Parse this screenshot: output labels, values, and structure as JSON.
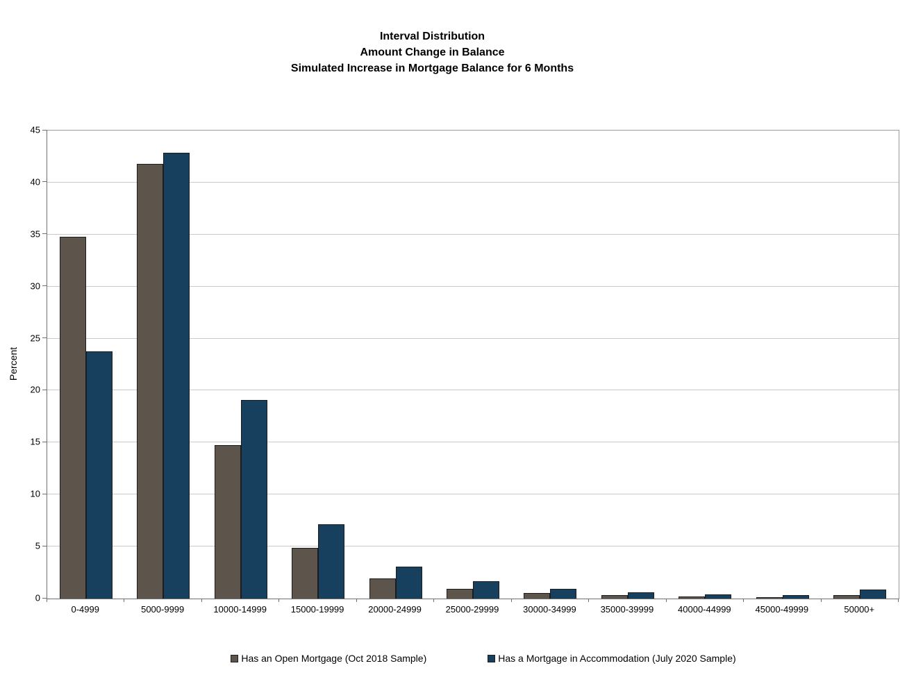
{
  "title": {
    "line1": "Interval Distribution",
    "line2": "Amount Change in Balance",
    "line3": "Simulated Increase in Mortgage Balance for 6 Months"
  },
  "chart_data": {
    "type": "bar",
    "title": "Interval Distribution — Amount Change in Balance — Simulated Increase in Mortgage Balance for 6 Months",
    "categories": [
      "0-4999",
      "5000-9999",
      "10000-14999",
      "15000-19999",
      "20000-24999",
      "25000-29999",
      "30000-34999",
      "35000-39999",
      "40000-44999",
      "45000-49999",
      "50000+"
    ],
    "series": [
      {
        "name": "Has an Open Mortgage (Oct 2018 Sample)",
        "color": "#5d544c",
        "values": [
          34.7,
          41.7,
          14.7,
          4.8,
          1.9,
          0.9,
          0.5,
          0.3,
          0.15,
          0.1,
          0.3
        ]
      },
      {
        "name": "Has a Mortgage in Accommodation (July 2020 Sample)",
        "color": "#17405e",
        "values": [
          23.7,
          42.8,
          19.0,
          7.1,
          3.0,
          1.6,
          0.9,
          0.55,
          0.35,
          0.25,
          0.8
        ]
      }
    ],
    "xlabel": "",
    "ylabel": "Percent",
    "ylim": [
      0,
      45
    ],
    "ytick_step": 5,
    "grid": true,
    "legend_position": "bottom",
    "colors": {
      "bar_border": "#1c1c1c",
      "gridline": "#c9c9c9",
      "axis": "#6f6f6f"
    }
  }
}
